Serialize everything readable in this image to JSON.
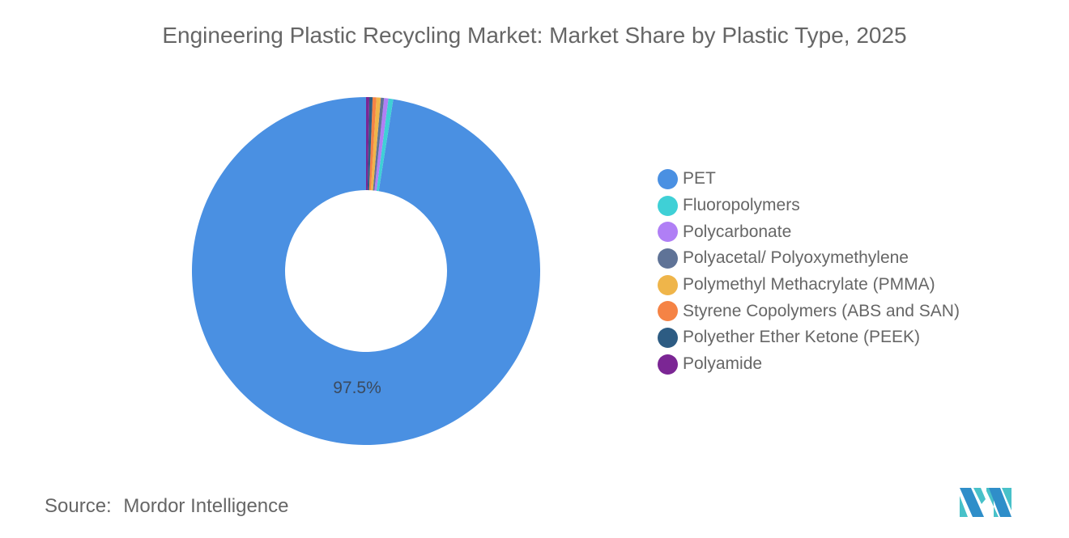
{
  "title": "Engineering Plastic Recycling Market: Market Share by Plastic Type, 2025",
  "source": {
    "label": "Source:",
    "value": "Mordor Intelligence"
  },
  "logo": {
    "name": "mordor-intelligence-logo",
    "colors": [
      "#2f8ec9",
      "#48c1c9"
    ]
  },
  "legend": {
    "items": [
      {
        "label": "PET",
        "color": "#4a90e2"
      },
      {
        "label": "Fluoropolymers",
        "color": "#3fd0d6"
      },
      {
        "label": "Polycarbonate",
        "color": "#b07ff5"
      },
      {
        "label": "Polyacetal/ Polyoxymethylene",
        "color": "#5f7397"
      },
      {
        "label": "Polymethyl Methacrylate (PMMA)",
        "color": "#efb54a"
      },
      {
        "label": "Styrene Copolymers (ABS and SAN)",
        "color": "#f58345"
      },
      {
        "label": "Polyether Ether Ketone (PEEK)",
        "color": "#2d5c83"
      },
      {
        "label": "Polyamide",
        "color": "#7b2694"
      }
    ]
  },
  "chart_data": {
    "type": "pie",
    "variant": "donut",
    "title": "Engineering Plastic Recycling Market: Market Share by Plastic Type, 2025",
    "categories": [
      "PET",
      "Fluoropolymers",
      "Polycarbonate",
      "Polyacetal/ Polyoxymethylene",
      "Polymethyl Methacrylate (PMMA)",
      "Styrene Copolymers (ABS and SAN)",
      "Polyether Ether Ketone (PEEK)",
      "Polyamide"
    ],
    "values": [
      97.5,
      0.45,
      0.4,
      0.3,
      0.4,
      0.35,
      0.3,
      0.3
    ],
    "colors": [
      "#4a90e2",
      "#3fd0d6",
      "#b07ff5",
      "#5f7397",
      "#efb54a",
      "#f58345",
      "#2d5c83",
      "#7b2694"
    ],
    "data_labels": [
      {
        "category": "PET",
        "text": "97.5%"
      }
    ],
    "unit": "%",
    "legend_position": "right",
    "source": "Mordor Intelligence"
  }
}
